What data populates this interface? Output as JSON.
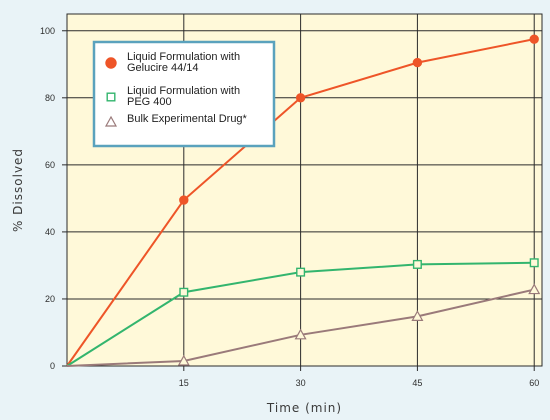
{
  "chart_data": {
    "type": "line",
    "title": "",
    "xlabel": "Time (min)",
    "ylabel": "% Dissolved",
    "x": [
      0,
      15,
      30,
      45,
      60
    ],
    "x_tick_labels": [
      "15",
      "30",
      "45",
      "60"
    ],
    "y_tick_labels": [
      "0",
      "20",
      "40",
      "60",
      "80",
      "100"
    ],
    "xlim": [
      0,
      61
    ],
    "ylim": [
      0,
      105
    ],
    "grid": true,
    "legend_position": "top-left",
    "series": [
      {
        "name": "Liquid Formulation with Gelucire 44/14",
        "legend_lines": [
          "Liquid Formulation with",
          "Gelucire 44/14"
        ],
        "marker": "filled-circle",
        "color": "#ee5528",
        "values": [
          0,
          49.5,
          80,
          90.5,
          97.5
        ]
      },
      {
        "name": "Liquid Formulation with PEG 400",
        "legend_lines": [
          "Liquid Formulation with",
          "PEG 400"
        ],
        "marker": "open-square",
        "color": "#33b56e",
        "values": [
          0,
          22,
          28,
          30.3,
          30.8
        ]
      },
      {
        "name": "Bulk Experimental Drug*",
        "legend_lines": [
          "Bulk Experimental Drug*"
        ],
        "marker": "open-triangle",
        "color": "#9a7a7a",
        "values": [
          0,
          1.5,
          9.3,
          14.8,
          22.8
        ]
      }
    ],
    "colors": {
      "background": "#e9f3f7",
      "plot_fill": "#fff9d9",
      "grid": "#2b2b2b",
      "legend_border": "#5aa2bd"
    }
  }
}
